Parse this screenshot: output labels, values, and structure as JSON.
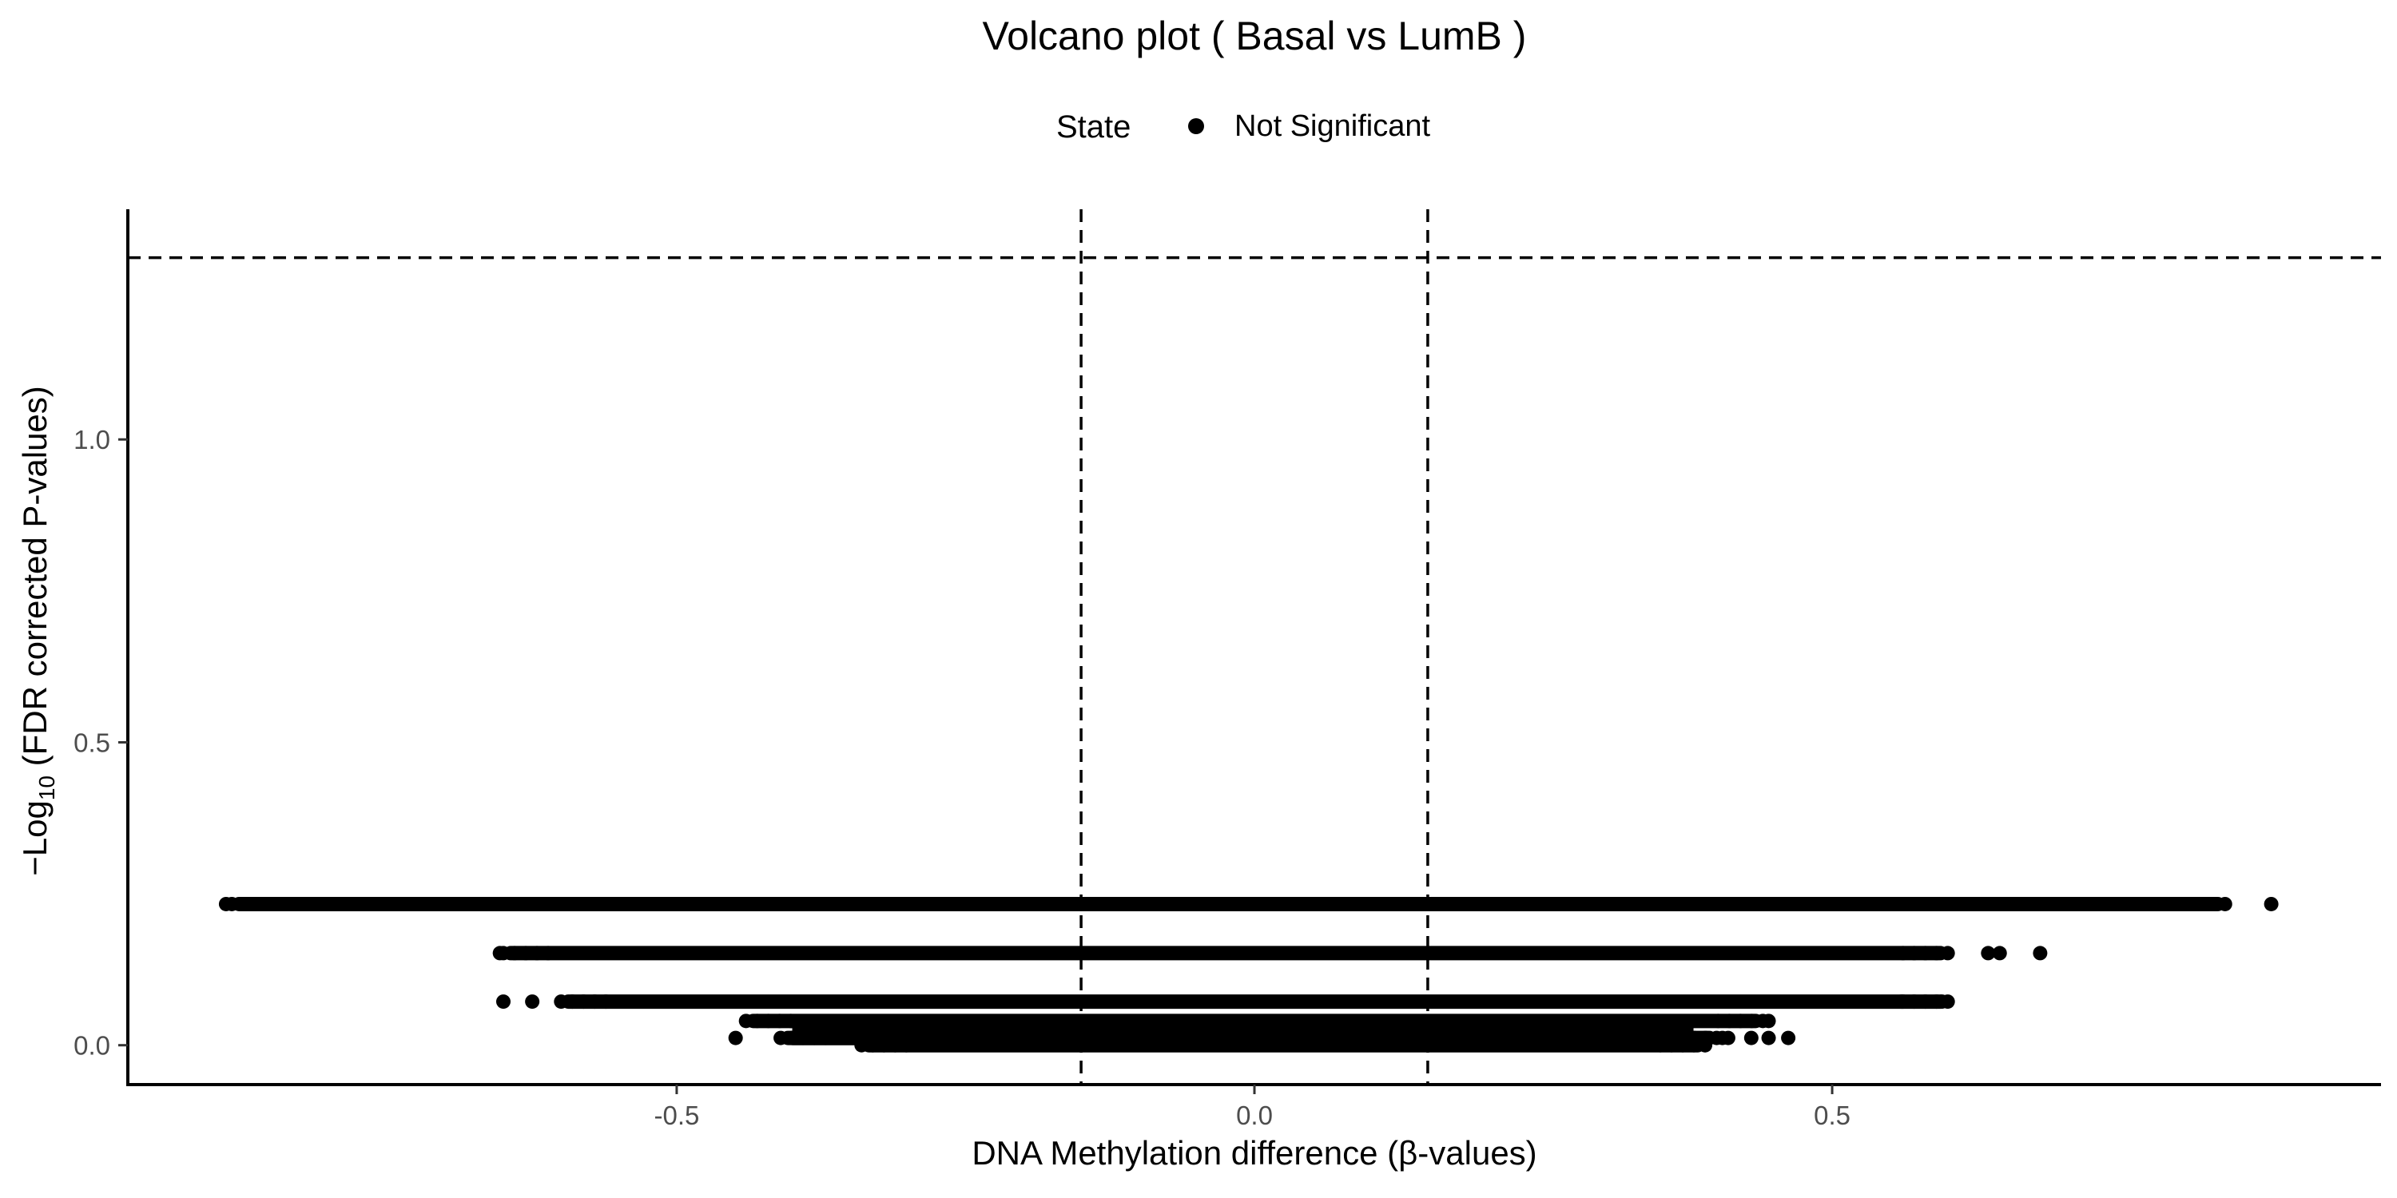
{
  "chart_data": {
    "type": "scatter",
    "title": "Volcano plot ( Basal vs LumB )",
    "xlabel": "DNA Methylation difference (β-values)",
    "ylabel": {
      "prefix": "−Log",
      "subscript": "10",
      "suffix": " (FDR corrected P-values)"
    },
    "xlim": [
      -0.975,
      0.975
    ],
    "ylim": [
      -0.065,
      1.38
    ],
    "x_ticks": [
      -0.5,
      0.0,
      0.5
    ],
    "x_tick_labels": [
      "-0.5",
      "0.0",
      "0.5"
    ],
    "y_ticks": [
      0.0,
      0.5,
      1.0
    ],
    "y_tick_labels": [
      "0.0",
      "0.5",
      "1.0"
    ],
    "grid": false,
    "legend": {
      "position": "top",
      "title": "State",
      "entries": [
        {
          "label": "Not Significant",
          "color": "#000000"
        }
      ]
    },
    "reference_lines": {
      "horizontal": [
        1.3
      ],
      "vertical": [
        -0.15,
        0.15
      ]
    },
    "series": [
      {
        "name": "Not Significant",
        "color": "#000000",
        "bands": [
          {
            "y": 0.233,
            "x_min": -0.885,
            "x_max": 0.84,
            "outliers": [
              -0.89,
              -0.86,
              0.82,
              0.83,
              0.88
            ]
          },
          {
            "y": 0.152,
            "x_min": -0.65,
            "x_max": 0.6,
            "outliers": [
              -0.653,
              0.635,
              0.645,
              0.68
            ]
          },
          {
            "y": 0.072,
            "x_min": -0.6,
            "x_max": 0.6,
            "outliers": [
              -0.65,
              -0.625,
              0.56,
              0.595
            ]
          },
          {
            "y": 0.04,
            "x_min": -0.44,
            "x_max": 0.44,
            "outliers": [
              0.445
            ]
          },
          {
            "y": 0.012,
            "x_min": -0.41,
            "x_max": 0.4,
            "outliers": [
              -0.449,
              0.405,
              0.41,
              0.43,
              0.445,
              0.462
            ]
          },
          {
            "y": 0.0,
            "x_min": -0.34,
            "x_max": 0.39,
            "outliers": [
              0.39
            ]
          }
        ]
      }
    ]
  }
}
